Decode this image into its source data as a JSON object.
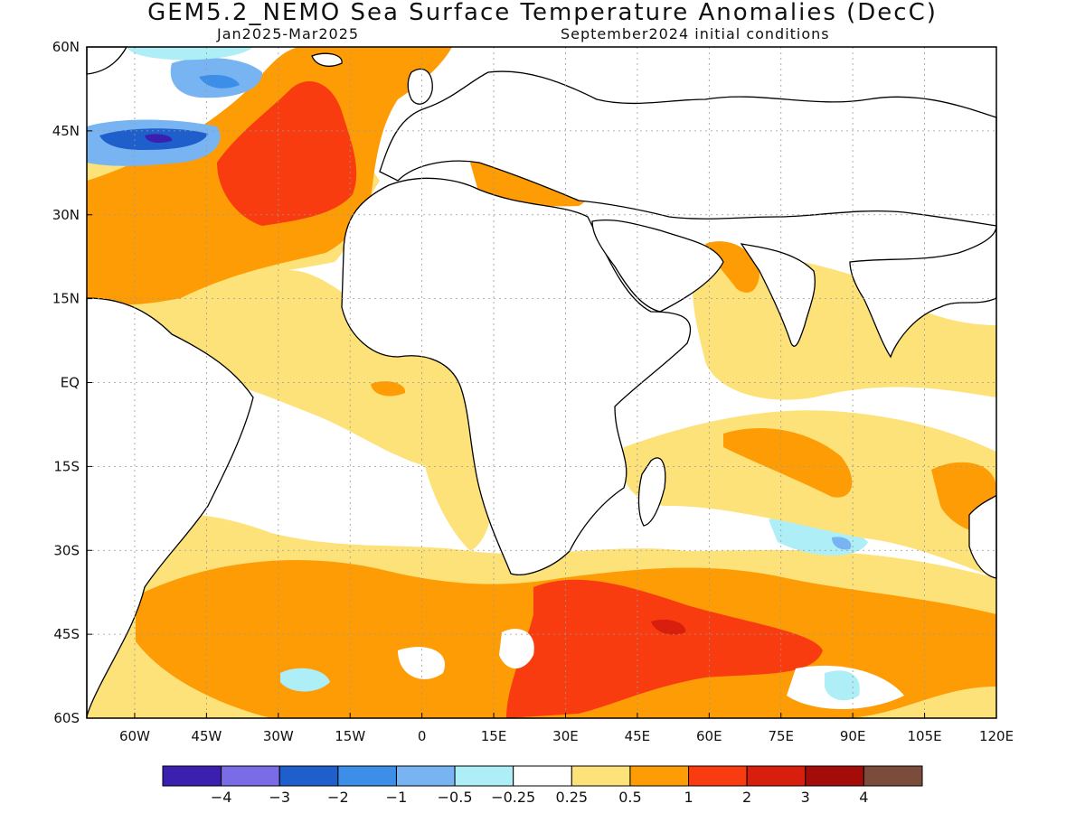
{
  "title": "GEM5.2_NEMO Sea Surface Temperature Anomalies (DecC)",
  "subtitle_left": "Jan2025-Mar2025",
  "subtitle_right": "September2024 initial conditions",
  "lat_labels": [
    "60N",
    "45N",
    "30N",
    "15N",
    "EQ",
    "15S",
    "30S",
    "45S",
    "60S"
  ],
  "lon_labels": [
    "60W",
    "45W",
    "30W",
    "15W",
    "0",
    "15E",
    "30E",
    "45E",
    "60E",
    "75E",
    "90E",
    "105E",
    "120E"
  ],
  "colorbar": {
    "colors": [
      "#3b20b0",
      "#7a6be6",
      "#1e5fcc",
      "#3c8ee8",
      "#78b4f2",
      "#aeeef7",
      "#ffffff",
      "#fde27a",
      "#fd9c05",
      "#f93c10",
      "#d81e0c",
      "#a30c08",
      "#7b4c3c"
    ],
    "labels": [
      "-4",
      "-3",
      "-2",
      "-1",
      "-0.5",
      "-0.25",
      "0.25",
      "0.5",
      "1",
      "2",
      "3",
      "4"
    ]
  },
  "map_data": {
    "extent": {
      "lon_min": -70,
      "lon_max": 120,
      "lat_min": -60,
      "lat_max": 60
    },
    "variable": "Sea Surface Temperature Anomaly",
    "units": "DecC"
  }
}
